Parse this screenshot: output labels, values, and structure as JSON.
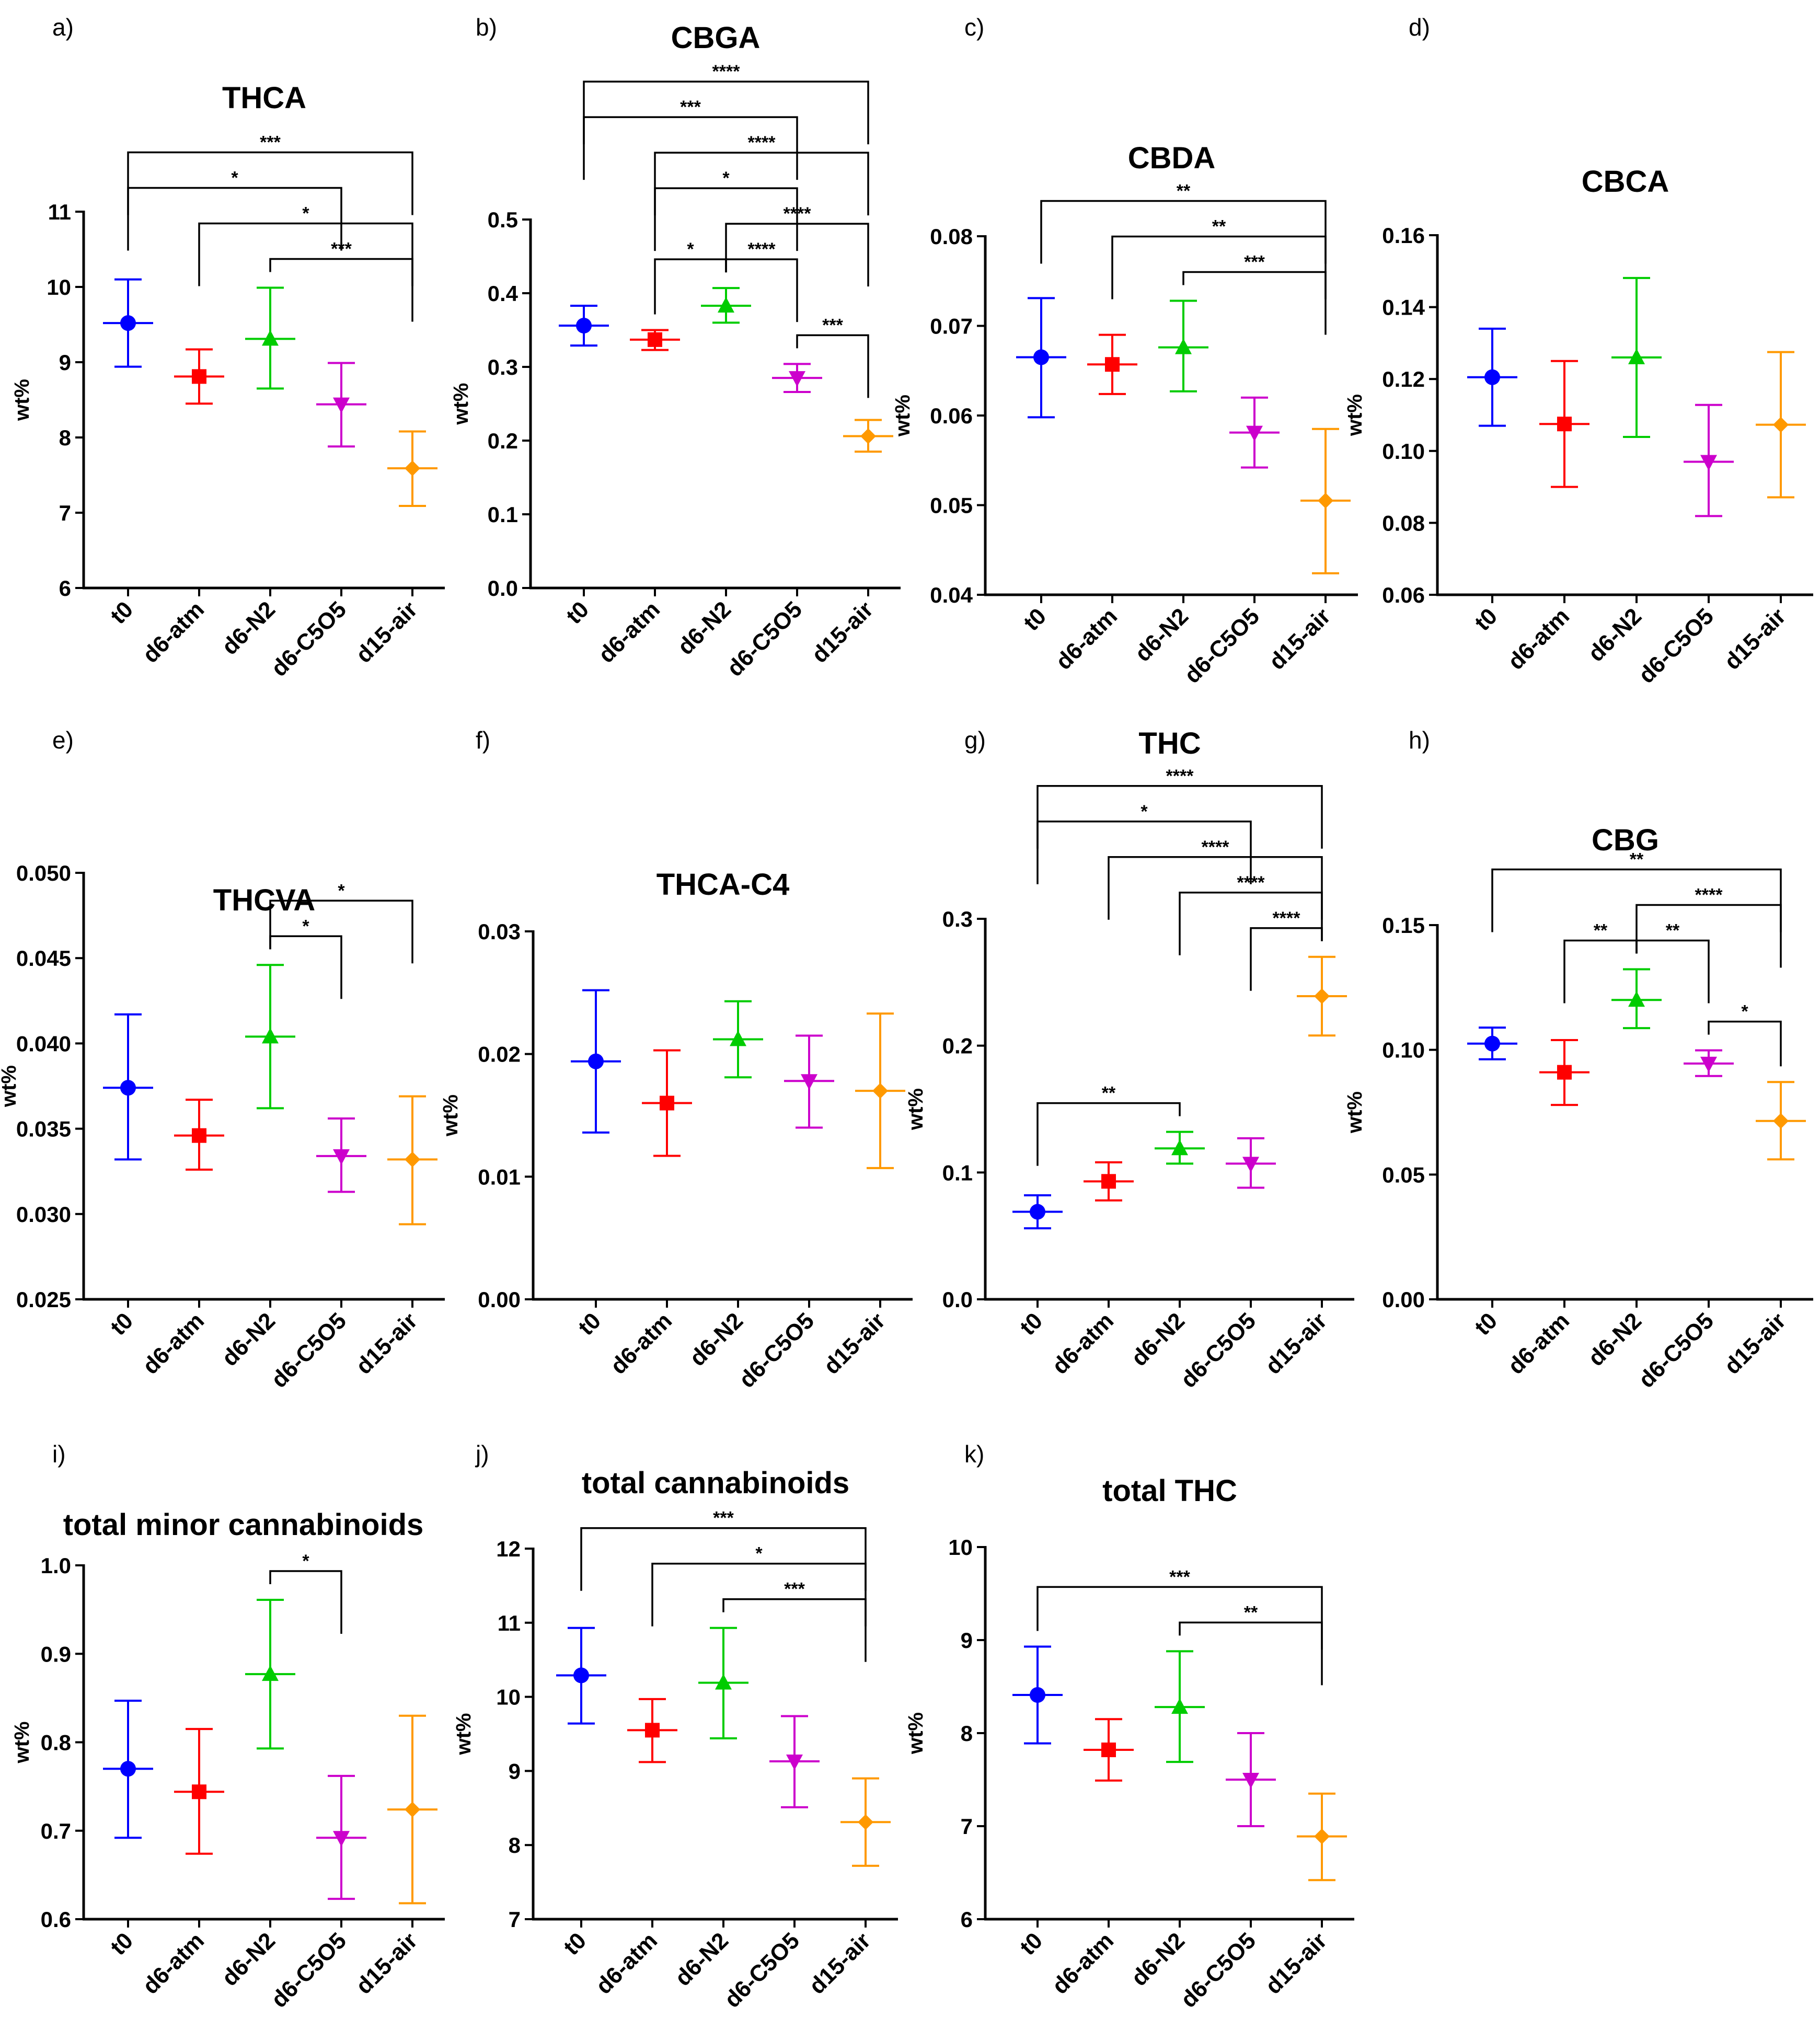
{
  "figure": {
    "groups": [
      "t0",
      "d6-atm",
      "d6-N2",
      "d6-C5O5",
      "d15-air"
    ],
    "group_colors": [
      "#0000FF",
      "#FF0000",
      "#00CC00",
      "#CC00CC",
      "#FF9900"
    ],
    "group_markers": [
      "circle-icon",
      "square-icon",
      "triangle-up-icon",
      "triangle-down-icon",
      "diamond-icon"
    ]
  },
  "chart_data": [
    {
      "label": "a)",
      "title": "THCA",
      "type": "scatter",
      "ylabel": "wt%",
      "yticks": [
        "6",
        "7",
        "8",
        "9",
        "10",
        "11"
      ],
      "ylim": [
        6,
        11
      ],
      "categories": [
        "t0",
        "d6-atm",
        "d6-N2",
        "d6-C5O5",
        "d15-air"
      ],
      "means": [
        9.52,
        8.81,
        9.31,
        8.44,
        7.59
      ],
      "err_low": [
        8.94,
        8.45,
        8.65,
        7.88,
        7.09
      ],
      "err_high": [
        10.1,
        9.17,
        9.99,
        8.99,
        8.08
      ],
      "brackets": [
        {
          "from": 0,
          "to": 4,
          "label": "***"
        },
        {
          "from": 1,
          "to": 4,
          "label": "*"
        },
        {
          "from": 0,
          "to": 3,
          "label": "*"
        },
        {
          "from": 2,
          "to": 4,
          "label": "***"
        }
      ]
    },
    {
      "label": "b)",
      "title": "CBGA",
      "type": "scatter",
      "ylabel": "wt%",
      "yticks": [
        "0.0",
        "0.1",
        "0.2",
        "0.3",
        "0.4",
        "0.5"
      ],
      "ylim": [
        0,
        0.5
      ],
      "categories": [
        "t0",
        "d6-atm",
        "d6-N2",
        "d6-C5O5",
        "d15-air"
      ],
      "means": [
        0.356,
        0.337,
        0.383,
        0.285,
        0.206
      ],
      "err_low": [
        0.329,
        0.323,
        0.36,
        0.266,
        0.185
      ],
      "err_high": [
        0.383,
        0.35,
        0.407,
        0.304,
        0.228
      ],
      "brackets": [
        {
          "from": 0,
          "to": 4,
          "label": "****"
        },
        {
          "from": 1,
          "to": 4,
          "label": "****"
        },
        {
          "from": 0,
          "to": 3,
          "label": "***"
        },
        {
          "from": 2,
          "to": 4,
          "label": "****"
        },
        {
          "from": 1,
          "to": 3,
          "label": "*"
        },
        {
          "from": 1,
          "to": 2,
          "label": "*"
        },
        {
          "from": 2,
          "to": 3,
          "label": "****"
        },
        {
          "from": 3,
          "to": 4,
          "label": "***"
        }
      ]
    },
    {
      "label": "c)",
      "title": "CBDA",
      "type": "scatter",
      "ylabel": "wt%",
      "yticks": [
        "0.04",
        "0.05",
        "0.06",
        "0.07",
        "0.08"
      ],
      "ylim": [
        0.04,
        0.08
      ],
      "categories": [
        "t0",
        "d6-atm",
        "d6-N2",
        "d6-C5O5",
        "d15-air"
      ],
      "means": [
        0.0665,
        0.0657,
        0.0676,
        0.0581,
        0.0505
      ],
      "err_low": [
        0.0598,
        0.0624,
        0.0627,
        0.0542,
        0.0424
      ],
      "err_high": [
        0.0731,
        0.069,
        0.0728,
        0.062,
        0.0585
      ],
      "brackets": [
        {
          "from": 0,
          "to": 4,
          "label": "**"
        },
        {
          "from": 1,
          "to": 4,
          "label": "**"
        },
        {
          "from": 2,
          "to": 4,
          "label": "***"
        }
      ]
    },
    {
      "label": "d)",
      "title": "CBCA",
      "type": "scatter",
      "ylabel": "wt%",
      "yticks": [
        "0.06",
        "0.08",
        "0.10",
        "0.12",
        "0.14",
        "0.16"
      ],
      "ylim": [
        0.06,
        0.16
      ],
      "categories": [
        "t0",
        "d6-atm",
        "d6-N2",
        "d6-C5O5",
        "d15-air"
      ],
      "means": [
        0.1205,
        0.1075,
        0.126,
        0.097,
        0.1073
      ],
      "err_low": [
        0.107,
        0.09,
        0.1039,
        0.0819,
        0.0871
      ],
      "err_high": [
        0.134,
        0.125,
        0.1481,
        0.1128,
        0.1275
      ],
      "brackets": []
    },
    {
      "label": "e)",
      "title": "THCVA",
      "type": "scatter",
      "ylabel": "wt%",
      "yticks": [
        "0.025",
        "0.030",
        "0.035",
        "0.040",
        "0.045",
        "0.050"
      ],
      "ylim": [
        0.025,
        0.05
      ],
      "categories": [
        "t0",
        "d6-atm",
        "d6-N2",
        "d6-C5O5",
        "d15-air"
      ],
      "means": [
        0.0374,
        0.0346,
        0.0404,
        0.0334,
        0.0332
      ],
      "err_low": [
        0.0332,
        0.0326,
        0.0362,
        0.0313,
        0.0294
      ],
      "err_high": [
        0.0417,
        0.0367,
        0.0446,
        0.0356,
        0.0369
      ],
      "brackets": [
        {
          "from": 2,
          "to": 4,
          "label": "*"
        },
        {
          "from": 2,
          "to": 3,
          "label": "*"
        }
      ]
    },
    {
      "label": "f)",
      "title": "THCA-C4",
      "type": "scatter",
      "ylabel": "wt%",
      "yticks": [
        "0.00",
        "0.01",
        "0.02",
        "0.03"
      ],
      "ylim": [
        0,
        0.03
      ],
      "categories": [
        "t0",
        "d6-atm",
        "d6-N2",
        "d6-C5O5",
        "d15-air"
      ],
      "means": [
        0.0194,
        0.016,
        0.0212,
        0.0178,
        0.017
      ],
      "err_low": [
        0.0136,
        0.0117,
        0.0181,
        0.014,
        0.0107
      ],
      "err_high": [
        0.0252,
        0.0203,
        0.0243,
        0.0215,
        0.0233
      ],
      "brackets": []
    },
    {
      "label": "g)",
      "title": "THC",
      "type": "scatter",
      "ylabel": "wt%",
      "yticks": [
        "0.0",
        "0.1",
        "0.2",
        "0.3"
      ],
      "ylim": [
        0,
        0.3
      ],
      "categories": [
        "t0",
        "d6-atm",
        "d6-N2",
        "d6-C5O5",
        "d15-air"
      ],
      "means": [
        0.069,
        0.093,
        0.119,
        0.107,
        0.239
      ],
      "err_low": [
        0.056,
        0.078,
        0.107,
        0.088,
        0.208
      ],
      "err_high": [
        0.082,
        0.108,
        0.132,
        0.127,
        0.27
      ],
      "brackets": [
        {
          "from": 0,
          "to": 4,
          "label": "****"
        },
        {
          "from": 1,
          "to": 4,
          "label": "****"
        },
        {
          "from": 0,
          "to": 3,
          "label": "*"
        },
        {
          "from": 2,
          "to": 4,
          "label": "****"
        },
        {
          "from": 0,
          "to": 2,
          "label": "**"
        },
        {
          "from": 3,
          "to": 4,
          "label": "****"
        }
      ]
    },
    {
      "label": "h)",
      "title": "CBG",
      "type": "scatter",
      "ylabel": "wt%",
      "yticks": [
        "0.00",
        "0.05",
        "0.10",
        "0.15"
      ],
      "ylim": [
        0,
        0.15
      ],
      "categories": [
        "t0",
        "d6-atm",
        "d6-N2",
        "d6-C5O5",
        "d15-air"
      ],
      "means": [
        0.1025,
        0.091,
        0.12,
        0.0945,
        0.0715
      ],
      "err_low": [
        0.0962,
        0.0779,
        0.1087,
        0.0895,
        0.0561
      ],
      "err_high": [
        0.1089,
        0.1039,
        0.1323,
        0.0998,
        0.0871
      ],
      "brackets": [
        {
          "from": 0,
          "to": 4,
          "label": "**"
        },
        {
          "from": 2,
          "to": 4,
          "label": "****"
        },
        {
          "from": 1,
          "to": 2,
          "label": "**"
        },
        {
          "from": 2,
          "to": 3,
          "label": "**"
        },
        {
          "from": 3,
          "to": 4,
          "label": "*"
        }
      ]
    },
    {
      "label": "i)",
      "title": "total minor cannabinoids",
      "type": "scatter",
      "ylabel": "wt%",
      "yticks": [
        "0.6",
        "0.7",
        "0.8",
        "0.9",
        "1.0"
      ],
      "ylim": [
        0.6,
        1.0
      ],
      "categories": [
        "t0",
        "d6-atm",
        "d6-N2",
        "d6-C5O5",
        "d15-air"
      ],
      "means": [
        0.77,
        0.744,
        0.877,
        0.692,
        0.724
      ],
      "err_low": [
        0.692,
        0.674,
        0.793,
        0.623,
        0.618
      ],
      "err_high": [
        0.847,
        0.815,
        0.961,
        0.762,
        0.83
      ],
      "brackets": [
        {
          "from": 2,
          "to": 3,
          "label": "*"
        }
      ]
    },
    {
      "label": "j)",
      "title": "total cannabinoids",
      "type": "scatter",
      "ylabel": "wt%",
      "yticks": [
        "7",
        "8",
        "9",
        "10",
        "11",
        "12"
      ],
      "ylim": [
        7,
        12
      ],
      "categories": [
        "t0",
        "d6-atm",
        "d6-N2",
        "d6-C5O5",
        "d15-air"
      ],
      "means": [
        10.29,
        9.55,
        10.19,
        9.13,
        8.31
      ],
      "err_low": [
        9.64,
        9.12,
        9.44,
        8.51,
        7.72
      ],
      "err_high": [
        10.93,
        9.97,
        10.93,
        9.74,
        8.9
      ],
      "brackets": [
        {
          "from": 0,
          "to": 4,
          "label": "***"
        },
        {
          "from": 1,
          "to": 4,
          "label": "*"
        },
        {
          "from": 2,
          "to": 4,
          "label": "***"
        }
      ]
    },
    {
      "label": "k)",
      "title": "total THC",
      "type": "scatter",
      "ylabel": "wt%",
      "yticks": [
        "6",
        "7",
        "8",
        "9",
        "10"
      ],
      "ylim": [
        6,
        10
      ],
      "categories": [
        "t0",
        "d6-atm",
        "d6-N2",
        "d6-C5O5",
        "d15-air"
      ],
      "means": [
        8.41,
        7.82,
        8.28,
        7.5,
        6.89
      ],
      "err_low": [
        7.89,
        7.49,
        7.69,
        7.0,
        6.42
      ],
      "err_high": [
        8.93,
        8.15,
        8.88,
        8.0,
        7.35
      ],
      "brackets": [
        {
          "from": 0,
          "to": 4,
          "label": "***"
        },
        {
          "from": 2,
          "to": 4,
          "label": "**"
        }
      ]
    }
  ]
}
